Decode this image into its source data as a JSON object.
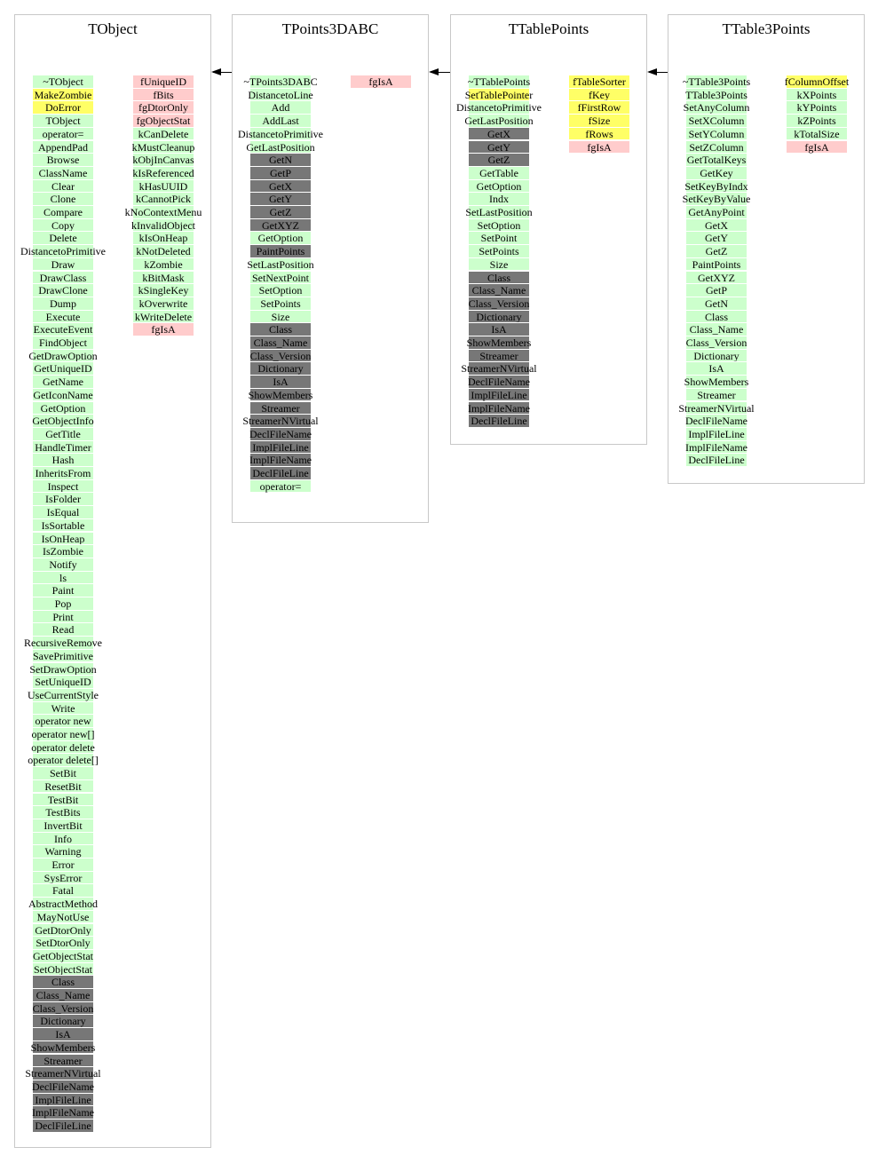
{
  "colors": {
    "green": "#ccffcc",
    "yellow": "#ffff66",
    "pink": "#ffcccc",
    "gray": "#777777"
  },
  "classes": [
    {
      "name": "TObject",
      "methods": [
        [
          "~TObject",
          "green"
        ],
        [
          "MakeZombie",
          "yellow"
        ],
        [
          "DoError",
          "yellow"
        ],
        [
          "TObject",
          "green"
        ],
        [
          "operator=",
          "green"
        ],
        [
          "AppendPad",
          "green"
        ],
        [
          "Browse",
          "green"
        ],
        [
          "ClassName",
          "green"
        ],
        [
          "Clear",
          "green"
        ],
        [
          "Clone",
          "green"
        ],
        [
          "Compare",
          "green"
        ],
        [
          "Copy",
          "green"
        ],
        [
          "Delete",
          "green"
        ],
        [
          "DistancetoPrimitive",
          "green"
        ],
        [
          "Draw",
          "green"
        ],
        [
          "DrawClass",
          "green"
        ],
        [
          "DrawClone",
          "green"
        ],
        [
          "Dump",
          "green"
        ],
        [
          "Execute",
          "green"
        ],
        [
          "ExecuteEvent",
          "green"
        ],
        [
          "FindObject",
          "green"
        ],
        [
          "GetDrawOption",
          "green"
        ],
        [
          "GetUniqueID",
          "green"
        ],
        [
          "GetName",
          "green"
        ],
        [
          "GetIconName",
          "green"
        ],
        [
          "GetOption",
          "green"
        ],
        [
          "GetObjectInfo",
          "green"
        ],
        [
          "GetTitle",
          "green"
        ],
        [
          "HandleTimer",
          "green"
        ],
        [
          "Hash",
          "green"
        ],
        [
          "InheritsFrom",
          "green"
        ],
        [
          "Inspect",
          "green"
        ],
        [
          "IsFolder",
          "green"
        ],
        [
          "IsEqual",
          "green"
        ],
        [
          "IsSortable",
          "green"
        ],
        [
          "IsOnHeap",
          "green"
        ],
        [
          "IsZombie",
          "green"
        ],
        [
          "Notify",
          "green"
        ],
        [
          "ls",
          "green"
        ],
        [
          "Paint",
          "green"
        ],
        [
          "Pop",
          "green"
        ],
        [
          "Print",
          "green"
        ],
        [
          "Read",
          "green"
        ],
        [
          "RecursiveRemove",
          "green"
        ],
        [
          "SavePrimitive",
          "green"
        ],
        [
          "SetDrawOption",
          "green"
        ],
        [
          "SetUniqueID",
          "green"
        ],
        [
          "UseCurrentStyle",
          "green"
        ],
        [
          "Write",
          "green"
        ],
        [
          "operator new",
          "green"
        ],
        [
          "operator new[]",
          "green"
        ],
        [
          "operator delete",
          "green"
        ],
        [
          "operator delete[]",
          "green"
        ],
        [
          "SetBit",
          "green"
        ],
        [
          "ResetBit",
          "green"
        ],
        [
          "TestBit",
          "green"
        ],
        [
          "TestBits",
          "green"
        ],
        [
          "InvertBit",
          "green"
        ],
        [
          "Info",
          "green"
        ],
        [
          "Warning",
          "green"
        ],
        [
          "Error",
          "green"
        ],
        [
          "SysError",
          "green"
        ],
        [
          "Fatal",
          "green"
        ],
        [
          "AbstractMethod",
          "green"
        ],
        [
          "MayNotUse",
          "green"
        ],
        [
          "GetDtorOnly",
          "green"
        ],
        [
          "SetDtorOnly",
          "green"
        ],
        [
          "GetObjectStat",
          "green"
        ],
        [
          "SetObjectStat",
          "green"
        ],
        [
          "Class",
          "gray"
        ],
        [
          "Class_Name",
          "gray"
        ],
        [
          "Class_Version",
          "gray"
        ],
        [
          "Dictionary",
          "gray"
        ],
        [
          "IsA",
          "gray"
        ],
        [
          "ShowMembers",
          "gray"
        ],
        [
          "Streamer",
          "gray"
        ],
        [
          "StreamerNVirtual",
          "gray"
        ],
        [
          "DeclFileName",
          "gray"
        ],
        [
          "ImplFileLine",
          "gray"
        ],
        [
          "ImplFileName",
          "gray"
        ],
        [
          "DeclFileLine",
          "gray"
        ]
      ],
      "members": [
        [
          "fUniqueID",
          "pink"
        ],
        [
          "fBits",
          "pink"
        ],
        [
          "fgDtorOnly",
          "pink"
        ],
        [
          "fgObjectStat",
          "pink"
        ],
        [
          "kCanDelete",
          "green"
        ],
        [
          "kMustCleanup",
          "green"
        ],
        [
          "kObjInCanvas",
          "green"
        ],
        [
          "kIsReferenced",
          "green"
        ],
        [
          "kHasUUID",
          "green"
        ],
        [
          "kCannotPick",
          "green"
        ],
        [
          "kNoContextMenu",
          "green"
        ],
        [
          "kInvalidObject",
          "green"
        ],
        [
          "kIsOnHeap",
          "green"
        ],
        [
          "kNotDeleted",
          "green"
        ],
        [
          "kZombie",
          "green"
        ],
        [
          "kBitMask",
          "green"
        ],
        [
          "kSingleKey",
          "green"
        ],
        [
          "kOverwrite",
          "green"
        ],
        [
          "kWriteDelete",
          "green"
        ],
        [
          "fgIsA",
          "pink"
        ]
      ]
    },
    {
      "name": "TPoints3DABC",
      "methods": [
        [
          "~TPoints3DABC",
          "green"
        ],
        [
          "DistancetoLine",
          "green"
        ],
        [
          "Add",
          "green"
        ],
        [
          "AddLast",
          "green"
        ],
        [
          "DistancetoPrimitive",
          "green"
        ],
        [
          "GetLastPosition",
          "green"
        ],
        [
          "GetN",
          "gray"
        ],
        [
          "GetP",
          "gray"
        ],
        [
          "GetX",
          "gray"
        ],
        [
          "GetY",
          "gray"
        ],
        [
          "GetZ",
          "gray"
        ],
        [
          "GetXYZ",
          "gray"
        ],
        [
          "GetOption",
          "green"
        ],
        [
          "PaintPoints",
          "gray"
        ],
        [
          "SetLastPosition",
          "green"
        ],
        [
          "SetNextPoint",
          "green"
        ],
        [
          "SetOption",
          "green"
        ],
        [
          "SetPoints",
          "green"
        ],
        [
          "Size",
          "green"
        ],
        [
          "Class",
          "gray"
        ],
        [
          "Class_Name",
          "gray"
        ],
        [
          "Class_Version",
          "gray"
        ],
        [
          "Dictionary",
          "gray"
        ],
        [
          "IsA",
          "gray"
        ],
        [
          "ShowMembers",
          "gray"
        ],
        [
          "Streamer",
          "gray"
        ],
        [
          "StreamerNVirtual",
          "gray"
        ],
        [
          "DeclFileName",
          "gray"
        ],
        [
          "ImplFileLine",
          "gray"
        ],
        [
          "ImplFileName",
          "gray"
        ],
        [
          "DeclFileLine",
          "gray"
        ],
        [
          "operator=",
          "green"
        ]
      ],
      "members": [
        [
          "fgIsA",
          "pink"
        ]
      ]
    },
    {
      "name": "TTablePoints",
      "methods": [
        [
          "~TTablePoints",
          "green"
        ],
        [
          "SetTablePointer",
          "yellow"
        ],
        [
          "DistancetoPrimitive",
          "green"
        ],
        [
          "GetLastPosition",
          "green"
        ],
        [
          "GetX",
          "gray"
        ],
        [
          "GetY",
          "gray"
        ],
        [
          "GetZ",
          "gray"
        ],
        [
          "GetTable",
          "green"
        ],
        [
          "GetOption",
          "green"
        ],
        [
          "Indx",
          "green"
        ],
        [
          "SetLastPosition",
          "green"
        ],
        [
          "SetOption",
          "green"
        ],
        [
          "SetPoint",
          "green"
        ],
        [
          "SetPoints",
          "green"
        ],
        [
          "Size",
          "green"
        ],
        [
          "Class",
          "gray"
        ],
        [
          "Class_Name",
          "gray"
        ],
        [
          "Class_Version",
          "gray"
        ],
        [
          "Dictionary",
          "gray"
        ],
        [
          "IsA",
          "gray"
        ],
        [
          "ShowMembers",
          "gray"
        ],
        [
          "Streamer",
          "gray"
        ],
        [
          "StreamerNVirtual",
          "gray"
        ],
        [
          "DeclFileName",
          "gray"
        ],
        [
          "ImplFileLine",
          "gray"
        ],
        [
          "ImplFileName",
          "gray"
        ],
        [
          "DeclFileLine",
          "gray"
        ]
      ],
      "members": [
        [
          "fTableSorter",
          "yellow"
        ],
        [
          "fKey",
          "yellow"
        ],
        [
          "fFirstRow",
          "yellow"
        ],
        [
          "fSize",
          "yellow"
        ],
        [
          "fRows",
          "yellow"
        ],
        [
          "fgIsA",
          "pink"
        ]
      ]
    },
    {
      "name": "TTable3Points",
      "methods": [
        [
          "~TTable3Points",
          "green"
        ],
        [
          "TTable3Points",
          "green"
        ],
        [
          "SetAnyColumn",
          "green"
        ],
        [
          "SetXColumn",
          "green"
        ],
        [
          "SetYColumn",
          "green"
        ],
        [
          "SetZColumn",
          "green"
        ],
        [
          "GetTotalKeys",
          "green"
        ],
        [
          "GetKey",
          "green"
        ],
        [
          "SetKeyByIndx",
          "green"
        ],
        [
          "SetKeyByValue",
          "green"
        ],
        [
          "GetAnyPoint",
          "green"
        ],
        [
          "GetX",
          "green"
        ],
        [
          "GetY",
          "green"
        ],
        [
          "GetZ",
          "green"
        ],
        [
          "PaintPoints",
          "green"
        ],
        [
          "GetXYZ",
          "green"
        ],
        [
          "GetP",
          "green"
        ],
        [
          "GetN",
          "green"
        ],
        [
          "Class",
          "green"
        ],
        [
          "Class_Name",
          "green"
        ],
        [
          "Class_Version",
          "green"
        ],
        [
          "Dictionary",
          "green"
        ],
        [
          "IsA",
          "green"
        ],
        [
          "ShowMembers",
          "green"
        ],
        [
          "Streamer",
          "green"
        ],
        [
          "StreamerNVirtual",
          "green"
        ],
        [
          "DeclFileName",
          "green"
        ],
        [
          "ImplFileLine",
          "green"
        ],
        [
          "ImplFileName",
          "green"
        ],
        [
          "DeclFileLine",
          "green"
        ]
      ],
      "members": [
        [
          "fColumnOffset",
          "yellow"
        ],
        [
          "kXPoints",
          "green"
        ],
        [
          "kYPoints",
          "green"
        ],
        [
          "kZPoints",
          "green"
        ],
        [
          "kTotalSize",
          "green"
        ],
        [
          "fgIsA",
          "pink"
        ]
      ]
    }
  ]
}
